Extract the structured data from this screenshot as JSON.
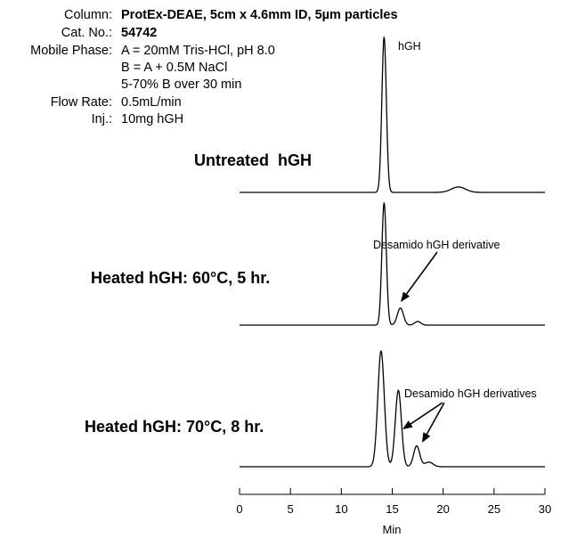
{
  "method": {
    "column_label": "Column:",
    "column_value": "ProtEx-DEAE, 5cm x 4.6mm ID, 5µm particles",
    "cat_label": "Cat. No.:",
    "cat_value": "54742",
    "mobile_label": "Mobile Phase:",
    "mobile_line1": "A = 20mM Tris-HCl, pH 8.0",
    "mobile_line2": "B = A + 0.5M NaCl",
    "mobile_line3": "5-70% B over 30 min",
    "flow_label": "Flow Rate:",
    "flow_value": "0.5mL/min",
    "inj_label": "Inj.:",
    "inj_value": "10mg hGH"
  },
  "annotations": {
    "peak_hgh": "hGH",
    "desamido_single": "Desamido hGH derivative",
    "desamido_plural": "Desamido hGH derivatives"
  },
  "chart_data": {
    "type": "line",
    "xlabel": "Min",
    "xlim": [
      0,
      30
    ],
    "x_ticks": [
      0,
      5,
      10,
      15,
      20,
      25,
      30
    ],
    "grid": false,
    "series": [
      {
        "name": "Untreated  hGH",
        "peaks": [
          {
            "center": 14.2,
            "height": 1.0,
            "width": 0.22
          },
          {
            "center": 21.5,
            "height": 0.035,
            "width": 0.7
          }
        ]
      },
      {
        "name": "Heated hGH: 60°C, 5 hr.",
        "peaks": [
          {
            "center": 14.2,
            "height": 1.0,
            "width": 0.22
          },
          {
            "center": 15.8,
            "height": 0.14,
            "width": 0.3
          },
          {
            "center": 17.5,
            "height": 0.03,
            "width": 0.3
          }
        ]
      },
      {
        "name": "Heated hGH: 70°C, 8 hr.",
        "peaks": [
          {
            "center": 13.9,
            "height": 1.0,
            "width": 0.32
          },
          {
            "center": 15.6,
            "height": 0.66,
            "width": 0.3
          },
          {
            "center": 17.4,
            "height": 0.18,
            "width": 0.3
          },
          {
            "center": 18.6,
            "height": 0.04,
            "width": 0.4
          }
        ]
      }
    ]
  }
}
